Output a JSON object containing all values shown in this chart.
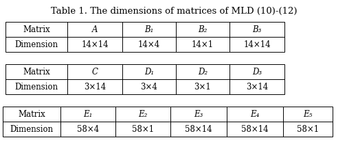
{
  "title": "Table 1. The dimensions of matrices of MLD (10)-(12)",
  "title_fontsize": 9.5,
  "table1": {
    "headers": [
      "Matrix",
      "A",
      "B₁",
      "B₂",
      "B₃"
    ],
    "header_italic": [
      false,
      true,
      true,
      true,
      true
    ],
    "row": [
      "Dimension",
      "14×14",
      "14×4",
      "14×1",
      "14×14"
    ]
  },
  "table2": {
    "headers": [
      "Matrix",
      "C",
      "D₁",
      "D₂",
      "D₃"
    ],
    "header_italic": [
      false,
      true,
      true,
      true,
      true
    ],
    "row": [
      "Dimension",
      "3×14",
      "3×4",
      "3×1",
      "3×14"
    ]
  },
  "table3": {
    "headers": [
      "Matrix",
      "E₁",
      "E₂",
      "E₃",
      "E₄",
      "E₅"
    ],
    "header_italic": [
      false,
      true,
      true,
      true,
      true,
      true
    ],
    "row": [
      "Dimension",
      "58×4",
      "58×1",
      "58×14",
      "58×14",
      "58×1"
    ]
  },
  "background_color": "#ffffff",
  "text_color": "#000000",
  "line_color": "#000000",
  "fontsize": 8.5
}
